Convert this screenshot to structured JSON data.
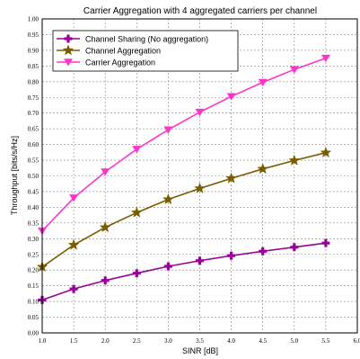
{
  "chart_data": {
    "type": "line",
    "title": "Carrier Aggregation with 4 aggregated carriers per channel",
    "xlabel": "SINR [dB]",
    "ylabel": "Throughput [bits/s/Hz]",
    "xlim": [
      1.0,
      6.0
    ],
    "ylim": [
      0.0,
      1.0
    ],
    "x_ticks": [
      "1.0",
      "1.5",
      "2.0",
      "2.5",
      "3.0",
      "3.5",
      "4.0",
      "4.5",
      "5.0",
      "5.5",
      "6.0"
    ],
    "y_ticks": [
      "0.00",
      "0.05",
      "0.10",
      "0.15",
      "0.20",
      "0.25",
      "0.30",
      "0.35",
      "0.40",
      "0.45",
      "0.50",
      "0.55",
      "0.60",
      "0.65",
      "0.70",
      "0.75",
      "0.80",
      "0.85",
      "0.90",
      "0.95",
      "1.00"
    ],
    "grid": true,
    "legend_position": "top-left",
    "x": [
      1.0,
      1.5,
      2.0,
      2.5,
      3.0,
      3.5,
      4.0,
      4.5,
      5.0,
      5.5
    ],
    "series": [
      {
        "name": "Channel Sharing (No aggregation)",
        "color": "#990099",
        "marker": "plus",
        "values": [
          0.105,
          0.14,
          0.167,
          0.19,
          0.212,
          0.23,
          0.246,
          0.26,
          0.273,
          0.286
        ]
      },
      {
        "name": "Channel Aggregation",
        "color": "#7a5c00",
        "marker": "star",
        "values": [
          0.21,
          0.28,
          0.336,
          0.383,
          0.425,
          0.46,
          0.492,
          0.522,
          0.549,
          0.574
        ]
      },
      {
        "name": "Carrier Aggregation",
        "color": "#ff33cc",
        "marker": "triangle-down",
        "values": [
          0.325,
          0.43,
          0.513,
          0.585,
          0.647,
          0.703,
          0.753,
          0.798,
          0.839,
          0.875
        ]
      }
    ]
  }
}
